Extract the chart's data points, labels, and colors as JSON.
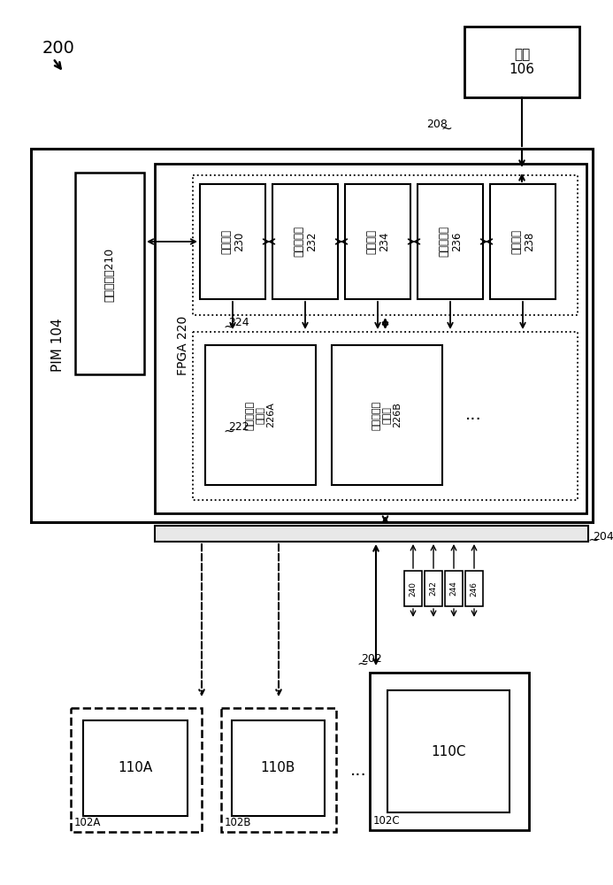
{
  "bg_color": "#ffffff",
  "label_200": "200",
  "label_pim": "PIM 104",
  "label_fpga": "FPGA 220",
  "label_flash_store": "闪速存储器210",
  "label_flash_iface": "闪存接口\n230",
  "label_reg_array": "寄存器阵列\n232",
  "label_proc": "处理部件\n234",
  "label_cfg_mem": "配置存储器\n236",
  "label_host_iface": "主机接口\n238",
  "label_host": "主机\n106",
  "label_reconfig_a": "可重新配置\n逻辑块\n226A",
  "label_reconfig_b": "可重新配置\n逻辑块\n226B",
  "label_208": "208",
  "label_224": "224",
  "label_222": "222",
  "label_204": "204",
  "label_202": "202",
  "label_240": "240",
  "label_242": "242",
  "label_244": "244",
  "label_246": "246",
  "label_102a": "102A",
  "label_110a": "110A",
  "label_102b": "102B",
  "label_110b": "110B",
  "label_102c": "102C",
  "label_110c": "110C",
  "label_dots": "..."
}
